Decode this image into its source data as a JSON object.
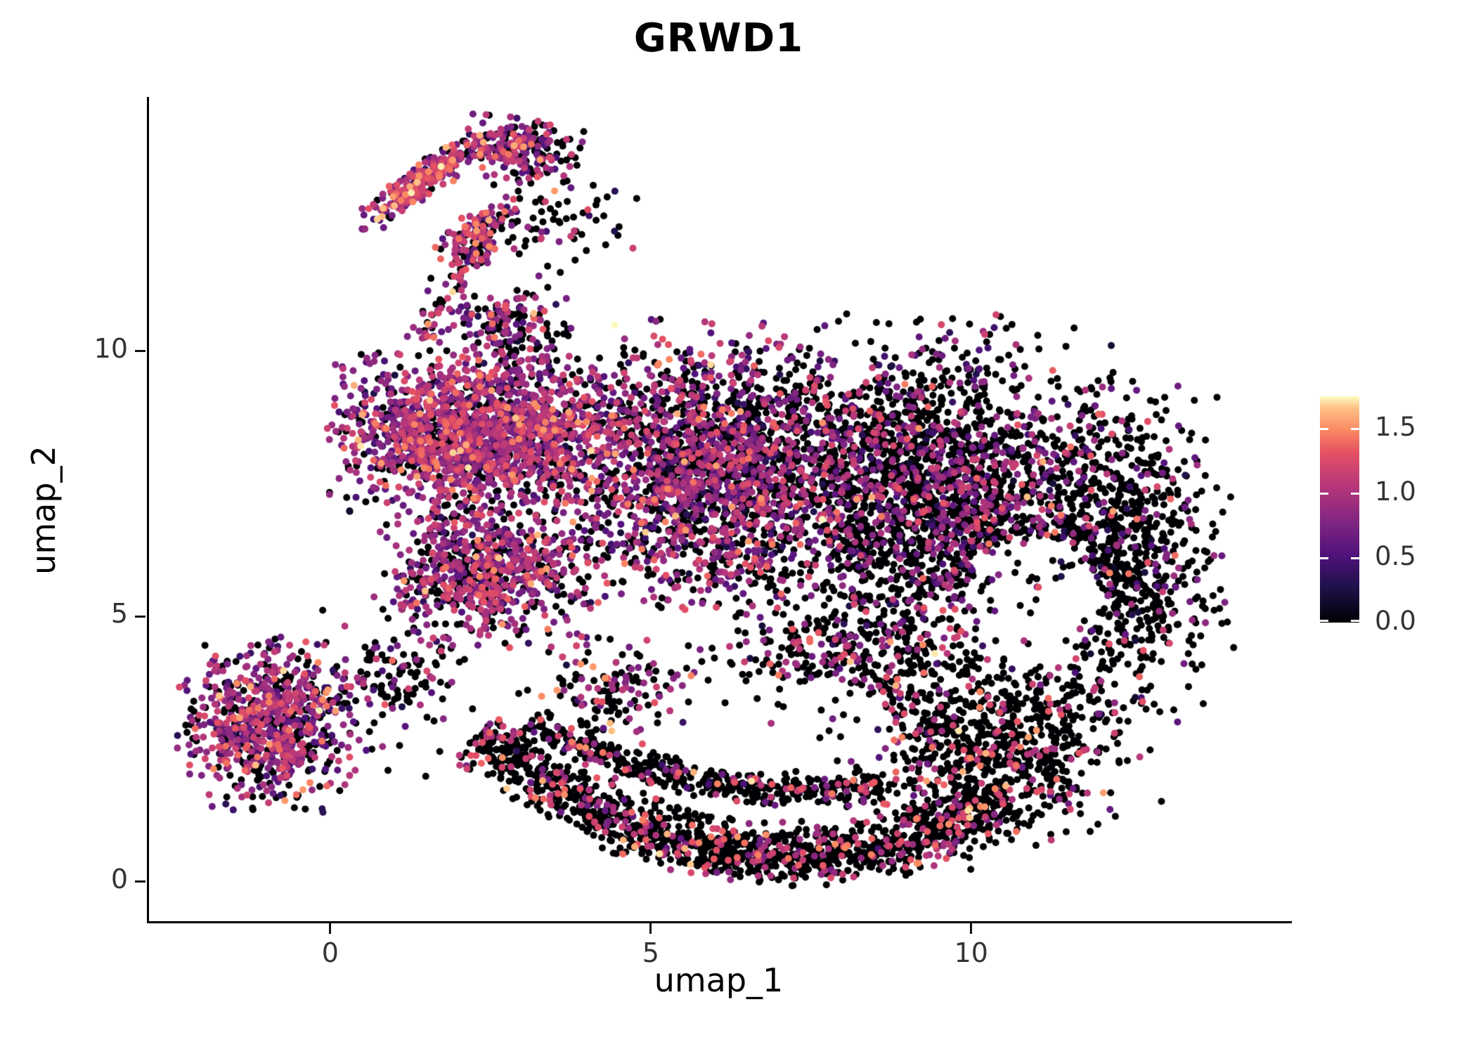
{
  "chart_data": {
    "type": "scatter",
    "title": "GRWD1",
    "xlabel": "umap_1",
    "ylabel": "umap_2",
    "xlim": [
      -2.85,
      14.97
    ],
    "ylim": [
      -0.76,
      14.77
    ],
    "grid": false,
    "x_ticks": [
      {
        "label": "0",
        "value": 0
      },
      {
        "label": "5",
        "value": 5
      },
      {
        "label": "10",
        "value": 10
      }
    ],
    "y_ticks": [
      {
        "label": "0",
        "value": 0
      },
      {
        "label": "5",
        "value": 5
      },
      {
        "label": "10",
        "value": 10
      }
    ],
    "legend": {
      "position": "right",
      "vmin": 0,
      "vmax": 1.75,
      "ticks": [
        {
          "label": "0.0",
          "value": 0.0
        },
        {
          "label": "0.5",
          "value": 0.5
        },
        {
          "label": "1.0",
          "value": 1.0
        },
        {
          "label": "1.5",
          "value": 1.5
        }
      ]
    },
    "colormap": {
      "name": "magma",
      "stops": [
        {
          "t": 0.0,
          "color": "#000004"
        },
        {
          "t": 0.15,
          "color": "#1d1147"
        },
        {
          "t": 0.3,
          "color": "#51127c"
        },
        {
          "t": 0.45,
          "color": "#822681"
        },
        {
          "t": 0.6,
          "color": "#b5367a"
        },
        {
          "t": 0.75,
          "color": "#e55064"
        },
        {
          "t": 0.85,
          "color": "#fb8861"
        },
        {
          "t": 0.95,
          "color": "#fec287"
        },
        {
          "t": 1.0,
          "color": "#fcfdbf"
        }
      ]
    },
    "point_radius_px": 5,
    "seed": 42,
    "clusters": [
      {
        "name": "top-arm",
        "shape": "ellipse",
        "cx": 1.5,
        "cy": 13.25,
        "rx": 1.2,
        "ry": 0.26,
        "rot": 42,
        "n": 280,
        "p0": 0.18,
        "mu": 1.0,
        "sigma": 0.3
      },
      {
        "name": "top-arm-head",
        "shape": "ellipse",
        "cx": 3.0,
        "cy": 13.8,
        "rx": 0.8,
        "ry": 0.55,
        "rot": -15,
        "n": 210,
        "p0": 0.4,
        "mu": 0.9,
        "sigma": 0.3
      },
      {
        "name": "top-arm-streak2",
        "shape": "ellipse",
        "cx": 2.3,
        "cy": 12.3,
        "rx": 0.75,
        "ry": 0.28,
        "rot": 40,
        "n": 110,
        "p0": 0.3,
        "mu": 1.0,
        "sigma": 0.3
      },
      {
        "name": "arm-trail",
        "shape": "arc",
        "x1": 1.5,
        "y1": 10.2,
        "cxq": 1.75,
        "cyq": 11.3,
        "x2": 2.5,
        "y2": 12.1,
        "w": 0.3,
        "n": 90,
        "p0": 0.35,
        "mu": 0.95,
        "sigma": 0.3
      },
      {
        "name": "arm-scatter",
        "shape": "ellipse",
        "cx": 3.5,
        "cy": 12.4,
        "rx": 1.1,
        "ry": 0.95,
        "rot": 0,
        "n": 70,
        "p0": 0.7,
        "mu": 0.9,
        "sigma": 0.35
      },
      {
        "name": "neck",
        "shape": "ellipse",
        "cx": 2.7,
        "cy": 10.5,
        "rx": 1.0,
        "ry": 0.65,
        "rot": 0,
        "n": 150,
        "p0": 0.5,
        "mu": 0.85,
        "sigma": 0.3
      },
      {
        "name": "main-left",
        "shape": "ellipse",
        "cx": 2.3,
        "cy": 8.5,
        "rx": 2.0,
        "ry": 1.4,
        "rot": 0,
        "n": 1650,
        "p0": 0.22,
        "mu": 0.9,
        "sigma": 0.28
      },
      {
        "name": "main-left-lower",
        "shape": "ellipse",
        "cx": 2.4,
        "cy": 5.9,
        "rx": 1.5,
        "ry": 1.25,
        "rot": 0,
        "n": 750,
        "p0": 0.3,
        "mu": 0.9,
        "sigma": 0.28
      },
      {
        "name": "main-center",
        "shape": "ellipse",
        "cx": 5.8,
        "cy": 7.8,
        "rx": 2.4,
        "ry": 2.35,
        "rot": 0,
        "n": 2100,
        "p0": 0.47,
        "mu": 0.85,
        "sigma": 0.3
      },
      {
        "name": "main-right",
        "shape": "ellipse",
        "cx": 9.3,
        "cy": 7.3,
        "rx": 2.5,
        "ry": 2.85,
        "rot": 0,
        "n": 2300,
        "p0": 0.7,
        "mu": 0.8,
        "sigma": 0.3
      },
      {
        "name": "right-edge",
        "shape": "ellipse",
        "cx": 12.3,
        "cy": 6.3,
        "rx": 1.5,
        "ry": 2.9,
        "rot": 0,
        "n": 950,
        "p0": 0.82,
        "mu": 0.8,
        "sigma": 0.32
      },
      {
        "name": "right-bottom",
        "shape": "ellipse",
        "cx": 10.4,
        "cy": 2.5,
        "rx": 1.9,
        "ry": 1.7,
        "rot": 20,
        "n": 800,
        "p0": 0.82,
        "mu": 1.1,
        "sigma": 0.25
      },
      {
        "name": "bottom-arc",
        "shape": "arc",
        "x1": 2.3,
        "y1": 2.8,
        "cxq": 6.3,
        "cyq": -1.0,
        "x2": 10.6,
        "y2": 1.5,
        "w": 0.55,
        "n": 1400,
        "p0": 0.8,
        "mu": 1.1,
        "sigma": 0.25
      },
      {
        "name": "bottom-arc-upper",
        "shape": "arc",
        "x1": 3.1,
        "y1": 3.0,
        "cxq": 5.8,
        "cyq": 1.4,
        "x2": 8.6,
        "y2": 1.8,
        "w": 0.3,
        "n": 480,
        "p0": 0.82,
        "mu": 1.0,
        "sigma": 0.3
      },
      {
        "name": "bottom-left",
        "shape": "ellipse",
        "cx": -1.0,
        "cy": 2.95,
        "rx": 1.2,
        "ry": 1.4,
        "rot": 0,
        "n": 680,
        "p0": 0.28,
        "mu": 0.9,
        "sigma": 0.3
      },
      {
        "name": "bottom-left-halo",
        "shape": "ellipse",
        "cx": -0.3,
        "cy": 3.2,
        "rx": 1.7,
        "ry": 1.6,
        "rot": 0,
        "n": 130,
        "p0": 0.6,
        "mu": 0.85,
        "sigma": 0.3
      },
      {
        "name": "left-connector",
        "shape": "ellipse",
        "cx": 1.2,
        "cy": 3.9,
        "rx": 1.0,
        "ry": 0.85,
        "rot": 0,
        "n": 100,
        "p0": 0.72,
        "mu": 0.85,
        "sigma": 0.3
      },
      {
        "name": "mid-gap",
        "shape": "ellipse",
        "cx": 4.6,
        "cy": 3.6,
        "rx": 1.4,
        "ry": 1.0,
        "rot": 0,
        "n": 180,
        "p0": 0.6,
        "mu": 0.9,
        "sigma": 0.3
      },
      {
        "name": "lower-mid",
        "shape": "ellipse",
        "cx": 8.2,
        "cy": 3.9,
        "rx": 1.9,
        "ry": 1.4,
        "rot": 0,
        "n": 450,
        "p0": 0.72,
        "mu": 0.9,
        "sigma": 0.3
      }
    ],
    "holes": [
      {
        "cx": 10.95,
        "cy": 5.3,
        "rx": 1.05,
        "ry": 1.2,
        "reject": 0.85
      },
      {
        "cx": 6.8,
        "cy": 3.1,
        "rx": 1.9,
        "ry": 0.8,
        "reject": 0.8
      }
    ]
  }
}
